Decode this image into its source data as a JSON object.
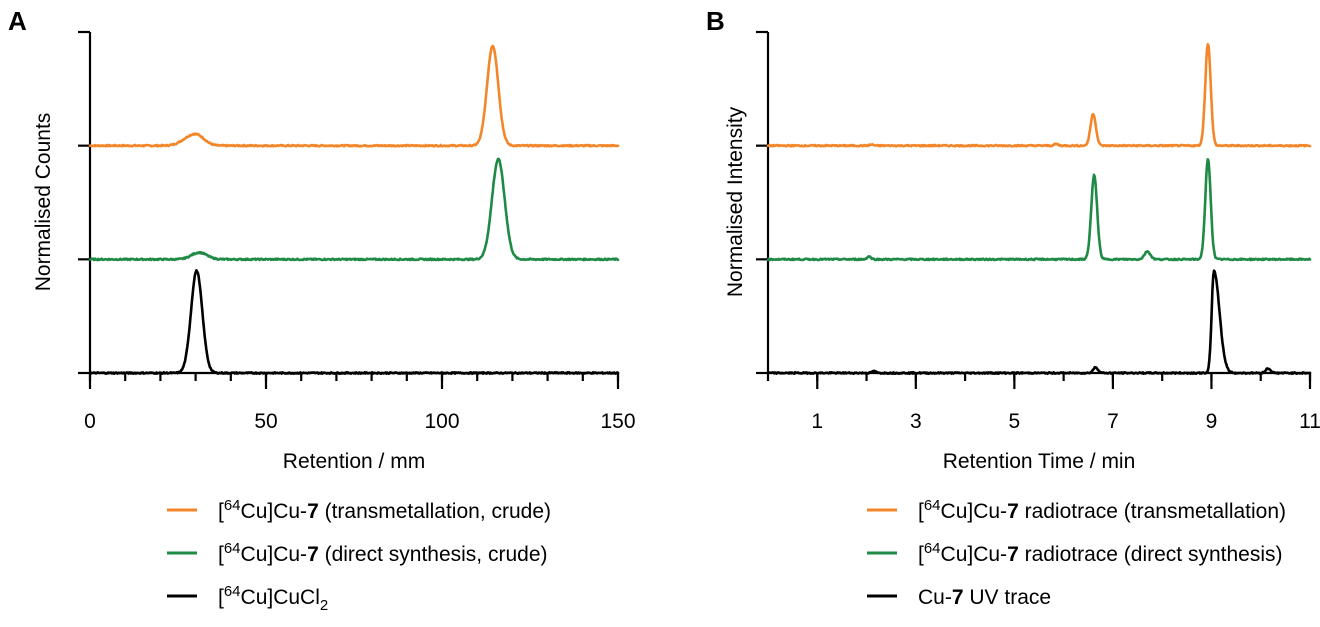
{
  "chart_data": [
    {
      "panel": "A",
      "type": "line",
      "xlabel": "Retention / mm",
      "ylabel": "Normalised Counts",
      "xlim": [
        0,
        150
      ],
      "xticks": [
        0,
        50,
        100,
        150
      ],
      "minor_x_step": 10,
      "y_offset_levels": 4,
      "grid": false,
      "legend_position": "bottom",
      "series": [
        {
          "name": "[64Cu]Cu-7 (transmetallation, crude)",
          "legend": {
            "bracket": "[",
            "iso": "64",
            "pre": "Cu]Cu-",
            "bold": "7",
            "post": " (transmetallation, crude)",
            "sub": ""
          },
          "color": "#f4862a",
          "baseline": 2,
          "peaks": [
            {
              "x": 28.5,
              "height": 0.07,
              "width": 2.5
            },
            {
              "x": 31,
              "height": 0.05,
              "width": 2.0
            },
            {
              "x": 114.4,
              "height": 0.88,
              "width": 1.6
            }
          ]
        },
        {
          "name": "[64Cu]Cu-7 (direct synthesis, crude)",
          "legend": {
            "bracket": "[",
            "iso": "64",
            "pre": "Cu]Cu-",
            "bold": "7",
            "post": " (direct synthesis, crude)",
            "sub": ""
          },
          "color": "#1f8a46",
          "baseline": 1,
          "peaks": [
            {
              "x": 31,
              "height": 0.06,
              "width": 2.2
            },
            {
              "x": 116,
              "height": 0.88,
              "width": 1.8
            }
          ]
        },
        {
          "name": "[64Cu]CuCl2",
          "legend": {
            "bracket": "[",
            "iso": "64",
            "pre": "Cu]CuCl",
            "bold": "",
            "post": "",
            "sub": "2"
          },
          "color": "#000000",
          "baseline": 0,
          "peaks": [
            {
              "x": 30.3,
              "height": 0.9,
              "width": 1.6
            }
          ]
        }
      ]
    },
    {
      "panel": "B",
      "type": "line",
      "xlabel": "Retention Time / min",
      "ylabel": "Normalised Intensity",
      "xlim": [
        0,
        11
      ],
      "xticks": [
        1,
        3,
        5,
        7,
        9,
        11
      ],
      "minor_x_step": 1,
      "y_offset_levels": 4,
      "grid": false,
      "legend_position": "bottom",
      "series": [
        {
          "name": "[64Cu]Cu-7 radiotrace (transmetallation)",
          "legend": {
            "bracket": "[",
            "iso": "64",
            "pre": "Cu]Cu-",
            "bold": "7",
            "post": " radiotrace (transmetallation)",
            "sub": ""
          },
          "color": "#f4862a",
          "baseline": 2,
          "peaks": [
            {
              "x": 2.1,
              "height": 0.01,
              "width": 0.04
            },
            {
              "x": 5.85,
              "height": 0.015,
              "width": 0.04
            },
            {
              "x": 6.6,
              "height": 0.28,
              "width": 0.055
            },
            {
              "x": 8.93,
              "height": 0.9,
              "width": 0.055
            }
          ]
        },
        {
          "name": "[64Cu]Cu-7 radiotrace (direct synthesis)",
          "legend": {
            "bracket": "[",
            "iso": "64",
            "pre": "Cu]Cu-",
            "bold": "7",
            "post": " radiotrace (direct synthesis)",
            "sub": ""
          },
          "color": "#1f8a46",
          "baseline": 1,
          "peaks": [
            {
              "x": 2.05,
              "height": 0.025,
              "width": 0.04
            },
            {
              "x": 6.62,
              "height": 0.74,
              "width": 0.06
            },
            {
              "x": 7.7,
              "height": 0.07,
              "width": 0.06
            },
            {
              "x": 8.93,
              "height": 0.88,
              "width": 0.055
            }
          ]
        },
        {
          "name": "Cu-7 UV trace",
          "legend": {
            "bracket": "",
            "iso": "",
            "pre": "Cu-",
            "bold": "7",
            "post": "  UV trace",
            "sub": ""
          },
          "color": "#000000",
          "baseline": 0,
          "peaks": [
            {
              "x": 2.15,
              "height": 0.015,
              "width": 0.04
            },
            {
              "x": 6.65,
              "height": 0.05,
              "width": 0.05
            },
            {
              "x": 9.05,
              "height": 0.9,
              "width": 0.045,
              "tail": 0.25
            },
            {
              "x": 10.15,
              "height": 0.04,
              "width": 0.05
            }
          ]
        }
      ]
    }
  ]
}
